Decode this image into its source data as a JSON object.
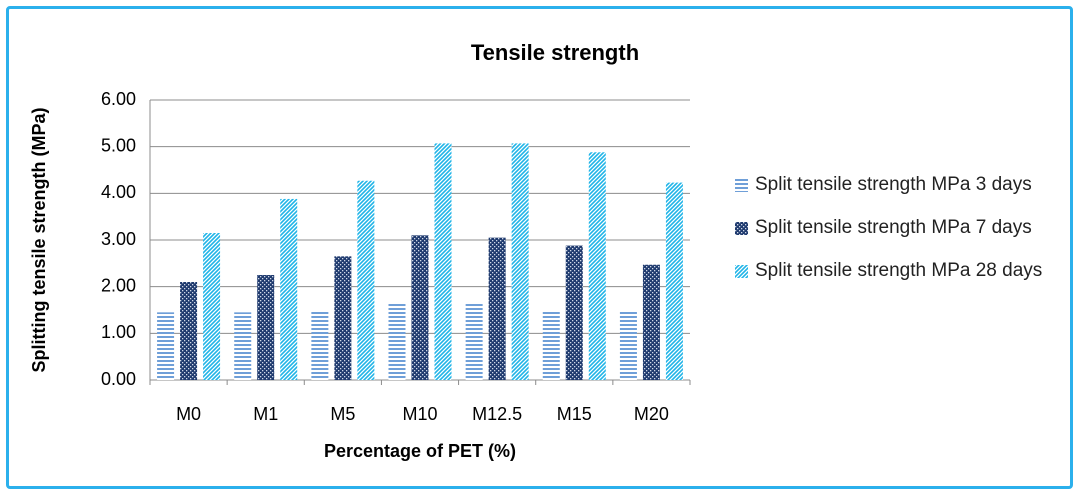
{
  "chart_data": {
    "type": "bar",
    "title": "Tensile strength",
    "x_label": "Percentage of PET (%)",
    "y_label": "Splitting tensile strength (MPa)",
    "categories": [
      "M0",
      "M1",
      "M5",
      "M10",
      "M12.5",
      "M15",
      "M20"
    ],
    "series": [
      {
        "name": "Split tensile strength MPa 3 days",
        "color": "#6f9fd8",
        "pattern": "horizontal",
        "values": [
          1.45,
          1.45,
          1.5,
          1.67,
          1.67,
          1.5,
          1.5
        ]
      },
      {
        "name": "Split tensile strength MPa 7 days",
        "color": "#1f3a6e",
        "pattern": "checker",
        "values": [
          2.1,
          2.25,
          2.65,
          3.1,
          3.05,
          2.88,
          2.47
        ]
      },
      {
        "name": "Split tensile strength MPa 28 days",
        "color": "#1fb4e8",
        "pattern": "diagonal",
        "values": [
          3.15,
          3.88,
          4.27,
          5.07,
          5.07,
          4.88,
          4.23
        ]
      }
    ],
    "ylim": [
      0,
      6
    ],
    "yticks": [
      {
        "value": 0,
        "label": "0.00"
      },
      {
        "value": 1,
        "label": "1.00"
      },
      {
        "value": 2,
        "label": "2.00"
      },
      {
        "value": 3,
        "label": "3.00"
      },
      {
        "value": 4,
        "label": "4.00"
      },
      {
        "value": 5,
        "label": "5.00"
      },
      {
        "value": 6,
        "label": "6.00"
      }
    ],
    "grid": true,
    "legend": "right"
  }
}
